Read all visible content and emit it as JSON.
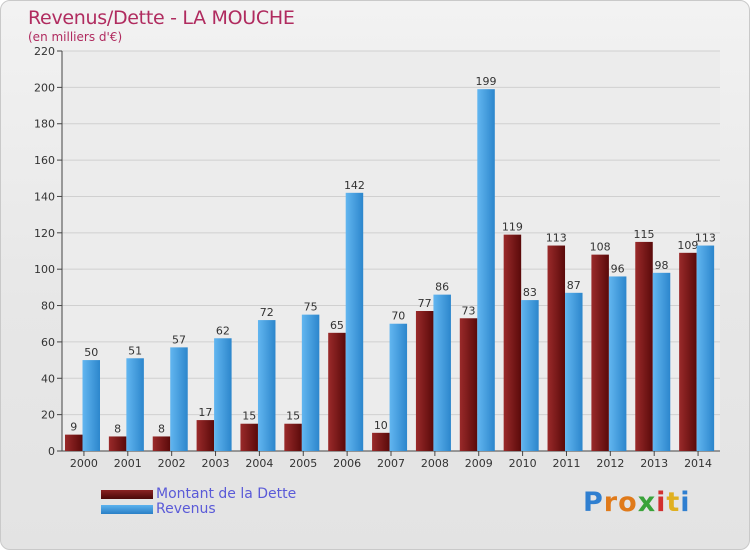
{
  "chart_data": {
    "type": "bar",
    "title": "Revenus/Dette - LA MOUCHE",
    "subtitle": "(en milliers d'€)",
    "categories": [
      "2000",
      "2001",
      "2002",
      "2003",
      "2004",
      "2005",
      "2006",
      "2007",
      "2008",
      "2009",
      "2010",
      "2011",
      "2012",
      "2013",
      "2014"
    ],
    "series": [
      {
        "name": "Montant de la Dette",
        "color": "#7a1a1a",
        "values": [
          9,
          8,
          8,
          17,
          15,
          15,
          65,
          10,
          77,
          73,
          119,
          113,
          108,
          115,
          109
        ]
      },
      {
        "name": "Revenus",
        "color": "#3d9ae0",
        "values": [
          50,
          51,
          57,
          62,
          72,
          75,
          142,
          70,
          86,
          199,
          83,
          87,
          96,
          98,
          113
        ]
      }
    ],
    "yticks": [
      0,
      20,
      40,
      60,
      80,
      100,
      120,
      140,
      160,
      180,
      200,
      220
    ],
    "ylim": [
      0,
      220
    ],
    "grid": true,
    "legend_position": "bottom-left"
  },
  "logo": {
    "text": "Proxiti",
    "letters": [
      "P",
      "r",
      "o",
      "x",
      "i",
      "t",
      "i"
    ],
    "colors": [
      "#2f7fd0",
      "#e07a1a",
      "#e07a1a",
      "#3aa33a",
      "#d23030",
      "#e0b020",
      "#2f7fd0"
    ]
  }
}
